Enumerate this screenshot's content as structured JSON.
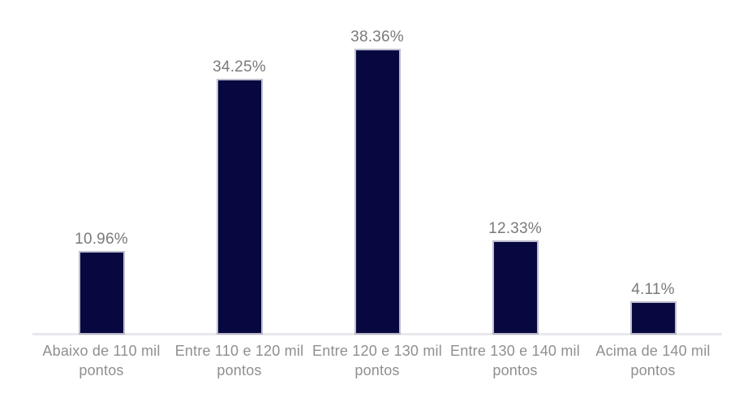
{
  "chart_data": {
    "type": "bar",
    "categories": [
      "Abaixo de 110 mil pontos",
      "Entre 110 e 120 mil pontos",
      "Entre 120 e 130 mil pontos",
      "Entre 130 e 140 mil pontos",
      "Acima de 140 mil pontos"
    ],
    "category_lines": [
      [
        "Abaixo de 110 mil",
        "pontos"
      ],
      [
        "Entre 110 e 120 mil",
        "pontos"
      ],
      [
        "Entre 120 e 130 mil",
        "pontos"
      ],
      [
        "Entre 130 e 140 mil",
        "pontos"
      ],
      [
        "Acima de 140 mil",
        "pontos"
      ]
    ],
    "values": [
      10.96,
      34.25,
      38.36,
      12.33,
      4.11
    ],
    "value_labels": [
      "10.96%",
      "34.25%",
      "38.36%",
      "12.33%",
      "4.11%"
    ],
    "title": "",
    "xlabel": "",
    "ylabel": "",
    "ylim": [
      0,
      45.2
    ],
    "legend": false,
    "gridlines": false,
    "y_axis_visible": false,
    "data_labels": true,
    "colors": {
      "bar_fill": "#080840",
      "bar_edge": "#888aa6",
      "value_label": "#7a7a7e",
      "category_label": "#8f8f93",
      "axis_line": "#e9e9ed",
      "background": "#ffffff"
    }
  }
}
